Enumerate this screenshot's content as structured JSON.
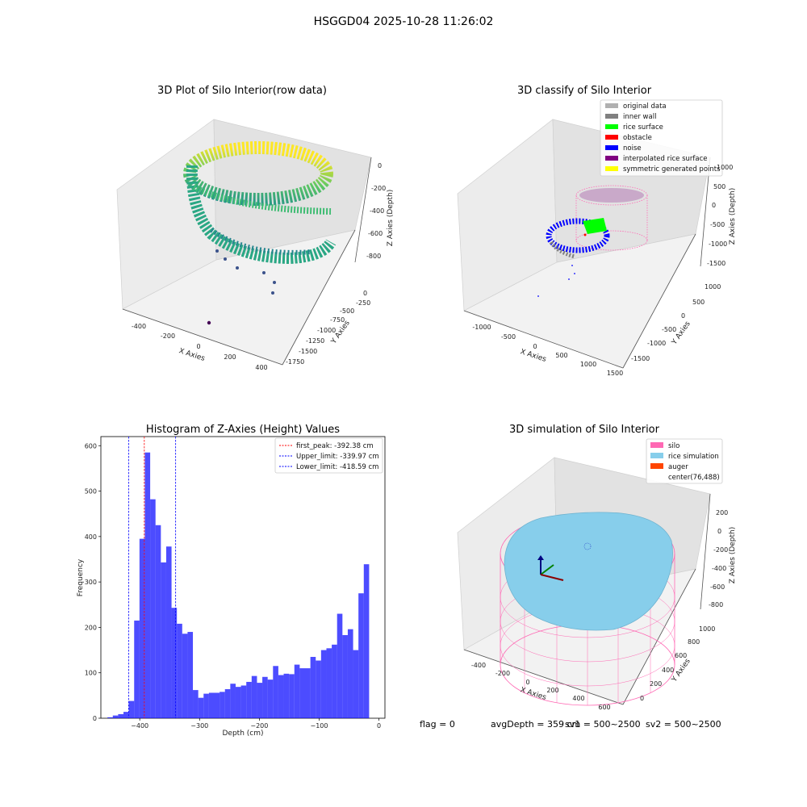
{
  "figure": {
    "suptitle": "HSGGD04 2025-10-28 11:26:02",
    "footer": {
      "flag": "flag = 0",
      "avg_depth": "avgDepth = 359 cm",
      "sv1": "sv1 = 500~2500",
      "sv2": "sv2 = 500~2500"
    }
  },
  "chart_data": [
    {
      "type": "scatter",
      "title": "3D Plot of Silo Interior(row data)",
      "xlabel": "X Axies",
      "ylabel": "Y Axies",
      "zlabel": "Z Axies (Depth)",
      "x_ticks": [
        "-400",
        "-200",
        "0",
        "200",
        "400"
      ],
      "y_ticks": [
        "0",
        "-250",
        "-500",
        "-750",
        "-1000",
        "-1250",
        "-1500",
        "-1750"
      ],
      "z_ticks": [
        "0",
        "-200",
        "-400",
        "-600",
        "-800"
      ],
      "colormap": [
        "#440154",
        "#3b528b",
        "#21908c",
        "#5dc863",
        "#fde725"
      ]
    },
    {
      "type": "scatter",
      "title": "3D classify of Silo Interior",
      "xlabel": "X Axies",
      "ylabel": "Y Axies",
      "zlabel": "Z Axies (Depth)",
      "x_ticks": [
        "-1000",
        "-500",
        "0",
        "500",
        "1000",
        "1500"
      ],
      "y_ticks": [
        "1000",
        "500",
        "0",
        "-500",
        "-1000",
        "-1500"
      ],
      "z_ticks": [
        "1000",
        "500",
        "0",
        "-500",
        "-1000",
        "-1500"
      ],
      "legend": [
        {
          "label": "original data",
          "color": "#b0b0b0"
        },
        {
          "label": "inner wall",
          "color": "#808080"
        },
        {
          "label": "rice surface",
          "color": "#00ff00"
        },
        {
          "label": "obstacle",
          "color": "#ff0000"
        },
        {
          "label": "noise",
          "color": "#0000ff"
        },
        {
          "label": "interpolated rice surface",
          "color": "#800080"
        },
        {
          "label": "symmetric generated points",
          "color": "#ffff00"
        }
      ]
    },
    {
      "type": "bar",
      "title": "Histogram of Z-Axies (Height) Values",
      "xlabel": "Depth (cm)",
      "ylabel": "Frequency",
      "xlim": [
        -465,
        10
      ],
      "ylim": [
        0,
        620
      ],
      "x_ticks": [
        -400,
        -300,
        -200,
        -100,
        0
      ],
      "y_ticks": [
        0,
        100,
        200,
        300,
        400,
        500,
        600
      ],
      "bin_start": -454,
      "bin_width": 8.93,
      "values": [
        2,
        6,
        9,
        14,
        38,
        215,
        395,
        585,
        482,
        425,
        343,
        378,
        243,
        208,
        186,
        190,
        62,
        45,
        54,
        56,
        56,
        58,
        64,
        76,
        69,
        72,
        80,
        93,
        78,
        91,
        85,
        115,
        95,
        98,
        97,
        118,
        110,
        110,
        135,
        127,
        150,
        154,
        162,
        230,
        183,
        196,
        150,
        275,
        339
      ],
      "bar_color": "#0000ff",
      "vlines": [
        {
          "name": "first_peak: -392.38 cm",
          "x": -392.38,
          "color": "#ff0000"
        },
        {
          "name": "Upper_limit: -339.97 cm",
          "x": -339.97,
          "color": "#0000ff"
        },
        {
          "name": "Lower_limit: -418.59 cm",
          "x": -418.59,
          "color": "#0000ff"
        }
      ],
      "legend_position": "top-right"
    },
    {
      "type": "scatter",
      "title": "3D simulation of Silo Interior",
      "xlabel": "X Axies",
      "ylabel": "Y Axies",
      "zlabel": "Z Axies (Depth)",
      "x_ticks": [
        "-400",
        "-200",
        "0",
        "200",
        "400",
        "600"
      ],
      "y_ticks": [
        "0",
        "200",
        "400",
        "600",
        "800",
        "1000"
      ],
      "z_ticks": [
        "200",
        "0",
        "-200",
        "-400",
        "-600",
        "-800"
      ],
      "legend": [
        {
          "label": "silo",
          "color": "#ff69b4"
        },
        {
          "label": "rice simulation",
          "color": "#87ceeb"
        },
        {
          "label": "auger",
          "color": "#ff4500"
        },
        {
          "label": "center(76,488)",
          "color": ""
        }
      ]
    }
  ]
}
